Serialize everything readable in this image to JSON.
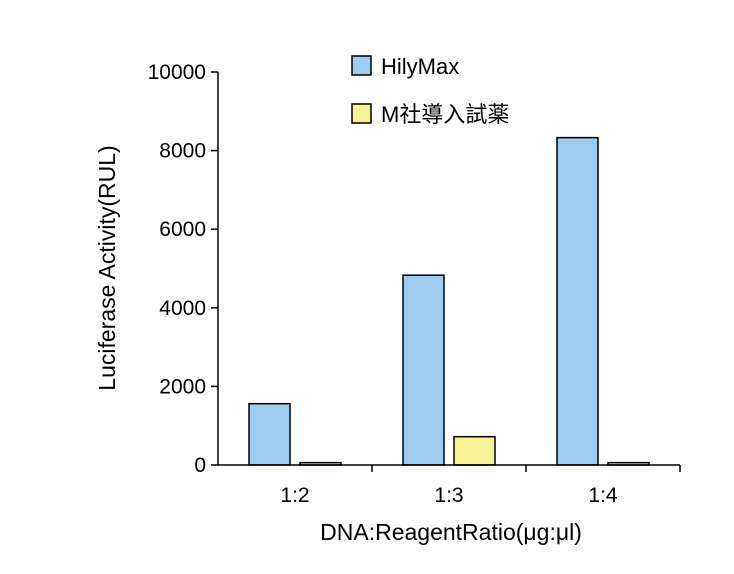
{
  "chart_data": {
    "type": "bar",
    "categories": [
      "1:2",
      "1:3",
      "1:4"
    ],
    "series": [
      {
        "name": "HilyMax",
        "color": "#9ecbf0",
        "values": [
          1560,
          4830,
          8330
        ]
      },
      {
        "name": "M社導入試薬",
        "color": "#f6f295",
        "values": [
          60,
          720,
          60
        ]
      }
    ],
    "ylim": [
      0,
      10000
    ],
    "yticks": [
      "0",
      "2000",
      "4000",
      "6000",
      "8000",
      "10000"
    ],
    "ytick_values": [
      0,
      2000,
      4000,
      6000,
      8000,
      10000
    ],
    "xlabel": "DNA:ReagentRatio(μg:μl)",
    "ylabel": "Luciferase Activity(RUL)",
    "legend_position": "top",
    "grid": false
  }
}
